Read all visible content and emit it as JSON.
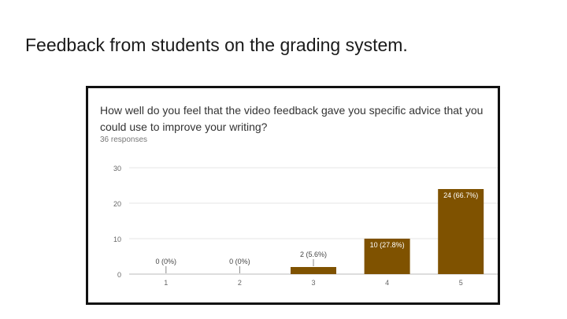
{
  "slide": {
    "title": "Feedback from students on the grading system."
  },
  "question": {
    "text": "How well do you feel that the video feedback gave you specific advice that you could use to improve your writing?",
    "responses": "36 responses"
  },
  "colors": {
    "bar": "#7f5200",
    "grid": "#e6e6e6",
    "axis_text": "#666666",
    "label_dark": "#444444",
    "label_light": "#ffffff"
  },
  "chart_data": {
    "type": "bar",
    "categories": [
      "1",
      "2",
      "3",
      "4",
      "5"
    ],
    "values": [
      0,
      0,
      2,
      10,
      24
    ],
    "data_labels": [
      "0 (0%)",
      "0 (0%)",
      "2 (5.6%)",
      "10 (27.8%)",
      "24 (66.7%)"
    ],
    "yticks": [
      0,
      10,
      20,
      30
    ],
    "ylim": [
      0,
      30
    ],
    "xlabel": "",
    "ylabel": "",
    "grid": true
  }
}
